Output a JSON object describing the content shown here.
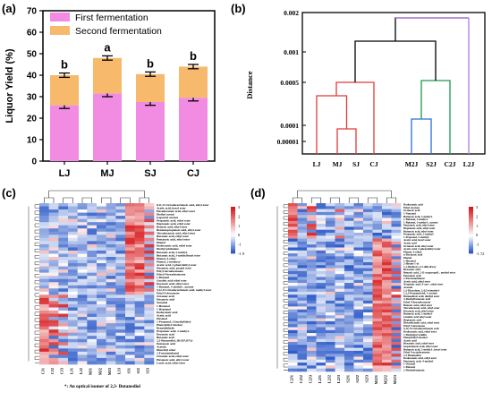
{
  "panels": {
    "a": "(a)",
    "b": "(b)",
    "c": "(c)",
    "d": "(d)"
  },
  "colors": {
    "first": "#f28ce3",
    "second": "#f7b96c",
    "red": "#e23a3a",
    "blue": "#2a6fdb",
    "green": "#1a9850",
    "purple": "#b07ae0",
    "black": "#000000"
  },
  "chart_data": [
    {
      "id": "a",
      "type": "bar",
      "stacked": true,
      "categories": [
        "LJ",
        "MJ",
        "SJ",
        "CJ"
      ],
      "series": [
        {
          "name": "First fermentation",
          "values": [
            26,
            31.5,
            27.5,
            29.5
          ],
          "errors": [
            1.5,
            1.5,
            1.5,
            1.5
          ],
          "color": "#f28ce3"
        },
        {
          "name": "Second fermentation",
          "values": [
            14,
            16.5,
            13,
            14.5
          ],
          "errors": [
            1,
            1,
            1,
            1
          ],
          "color": "#f7b96c"
        }
      ],
      "group_letters": [
        "b",
        "a",
        "b",
        "b"
      ],
      "ylabel": "Liquor Yield (%)",
      "ylim": [
        0,
        70
      ],
      "yticks": [
        "0",
        "10",
        "20",
        "30",
        "40",
        "50",
        "60",
        "70"
      ],
      "legend": "top-left"
    },
    {
      "id": "b",
      "type": "dendrogram",
      "ylabel": "Distance",
      "ylim_scale": "log",
      "yticks": [
        "0.002",
        "0.001",
        "0.0005",
        "0.0001",
        "0.00001"
      ],
      "leaves": [
        "LJ",
        "MJ",
        "SJ",
        "CJ",
        "M2J",
        "S2J",
        "C2J",
        "L2J"
      ]
    },
    {
      "id": "c",
      "type": "heatmap",
      "colorbar_ticks": [
        "3",
        "2",
        "1",
        "0",
        "-1",
        "-1.9"
      ],
      "col_labels": [
        "CJ1",
        "CJ2",
        "CJ3",
        "LJ1",
        "LJ2",
        "MJ1",
        "MJ2",
        "MJ3",
        "LJ3",
        "SJ1",
        "SJ2",
        "SJ3"
      ],
      "row_labels": [
        "8,11,13-Octadecatrienoic acid, ethyl ester",
        "Acetic acid, hexyl ester",
        "Hexadecanoic acid, ethyl ester",
        "Diethyl acetal",
        "Isopentyl acetate",
        "Propanoic acid, ethyl ester",
        "Heptanoic acid, ethyl ester",
        "Benzoic acid, ethyl ester",
        "Benzenepropanoic acid, ethyl ester",
        "Tetradecanoic acid, ethyl ester",
        "Butanoic acid, ethyl ester",
        "Pentanoic acid, ethyl ester",
        "Phenol",
        "Dodecanoic acid, ethyl ester",
        "Diethyl phthalate",
        "Butanoic acid, 3-methyl-",
        "Butanoic acid, 3-methylbutyl ester",
        "Phenol, 4-ethyl-",
        "Phenol, 2-methoxy-",
        "Acetic acid, 2-phenylethyl ester",
        "Hexanoic acid, propyl ester",
        "Ethyl tetradecanoate",
        "Ethyl 9-hexadecenoate",
        "1-Butanol",
        "Linoleic acid ethyl ester",
        "Decanoic acid, ethyl ester",
        "1-Butanol, 3-methyl-, acetate",
        "9,12,15-Octadecatrienoic acid, methyl ester",
        "Ethyl 9-decenoate",
        "Octanoic acid",
        "Hexanoic acid",
        "Nonanal",
        "1-Hexanol",
        "1-Heptanol",
        "Dodecanoic acid",
        "Acetic acid",
        "Hexanal",
        "1-Propanol, 3-(methylthio)-",
        "Phenylethyl Alcohol",
        "Benzaldehyde",
        "Propanoic acid, 2-methyl-",
        "Decanoic acid",
        "Butanoic acid",
        "2,3-Butanediol, [R-(R*,R*)]-",
        "Pentanoic acid",
        "Acetoin",
        "Dimethyl ether",
        "2-Furanmethanol",
        "Octanoic acid, ethyl ester",
        "Hexanoic acid, ethyl ester",
        "Lactic acid, ethyl ester"
      ],
      "note": "*: An optical isomer of 2,3- Butanediol"
    },
    {
      "id": "d",
      "type": "heatmap",
      "colorbar_ticks": [
        "3",
        "2",
        "1",
        "0",
        "-1",
        "-1.72"
      ],
      "col_labels": [
        "C2J1",
        "C2J2",
        "C2J3",
        "L2J1",
        "L2J2",
        "L2J3",
        "S2J1",
        "S2J2",
        "S2J3",
        "M2J1",
        "M2J2",
        "M2J3"
      ],
      "row_labels": [
        "Dodecanoic acid",
        "Ethyl Acetate",
        "Octanoic acid",
        "1-Nonanol",
        "Butanoic acid, 3-methyl-",
        "1-Butanol, 3-methyl-",
        "1-Butanol, 3-methyl-, acetate",
        "Pentanoic acid, ethyl ester",
        "Heptanoic acid, ethyl ester",
        "Butanoic acid, ethyl ester",
        "Propanoic acid, 2-methyl-",
        "1-Propanol, 2-methyl-",
        "Acetic acid, hexyl ester",
        "Acetic acid",
        "Octanoic acid, ethyl ester",
        "Acetic acid, 2-phenylethyl ester",
        "Phenol, 4-ethyl-",
        "n-Decanoic acid",
        "Phenol",
        "1-Hexanol",
        "2-Hexen-1-ol",
        "1,1-Diethoxy-2,3-dihydroxy",
        "Hexanoic acid",
        "Benzoic acid, 2-(1-oxopropyl)-, methyl ester",
        "Pentanoic acid",
        "2-Furanmethanol",
        "Acetic acid, ethyl ester",
        "Nonanoic acid, 9-oxo-, ethyl ester",
        "Acetoin",
        "1,3-Dioxolane, 2,4,5-trimethyl-",
        "1,2,3-Propanetriol, 1-acetate",
        "Butanedioic acid, diethyl ester",
        "3-Methylbutanoic acid",
        "Ethyl 9-hexadecenoate",
        "Benzoic acid, ethyl ester",
        "Tetradecanoic acid, ethyl ester",
        "Decanoic acid, ethyl ester",
        "Butanoic acid, 2-methyl-",
        "Linoleic acid ethyl ester",
        "Heptanoic acid",
        "Hexadecanoic acid, ethyl ester",
        "Ethyl 9-decenoate",
        "9,12,15-Octadecatrienoic acid",
        "Dodecanoic acid, ethyl ester",
        "1-Methylpyrrolidin",
        "Phenylethyl Alcohol",
        "Acetic acid",
        "Hexanoic acid, ethyl ester",
        "Isopentanoic acid, ethyl ester",
        "Butanoic acid, 2-methyl-, hexyl ester",
        "Ethyl 9-octadecenoate",
        "2,3-Butanediol",
        "Dodecanoic acid, ethyl ester",
        "Pentanoic acid, 4-methyl-",
        "1-Octanol",
        "1-Butanol",
        "2-Methylbutanoic"
      ]
    }
  ]
}
